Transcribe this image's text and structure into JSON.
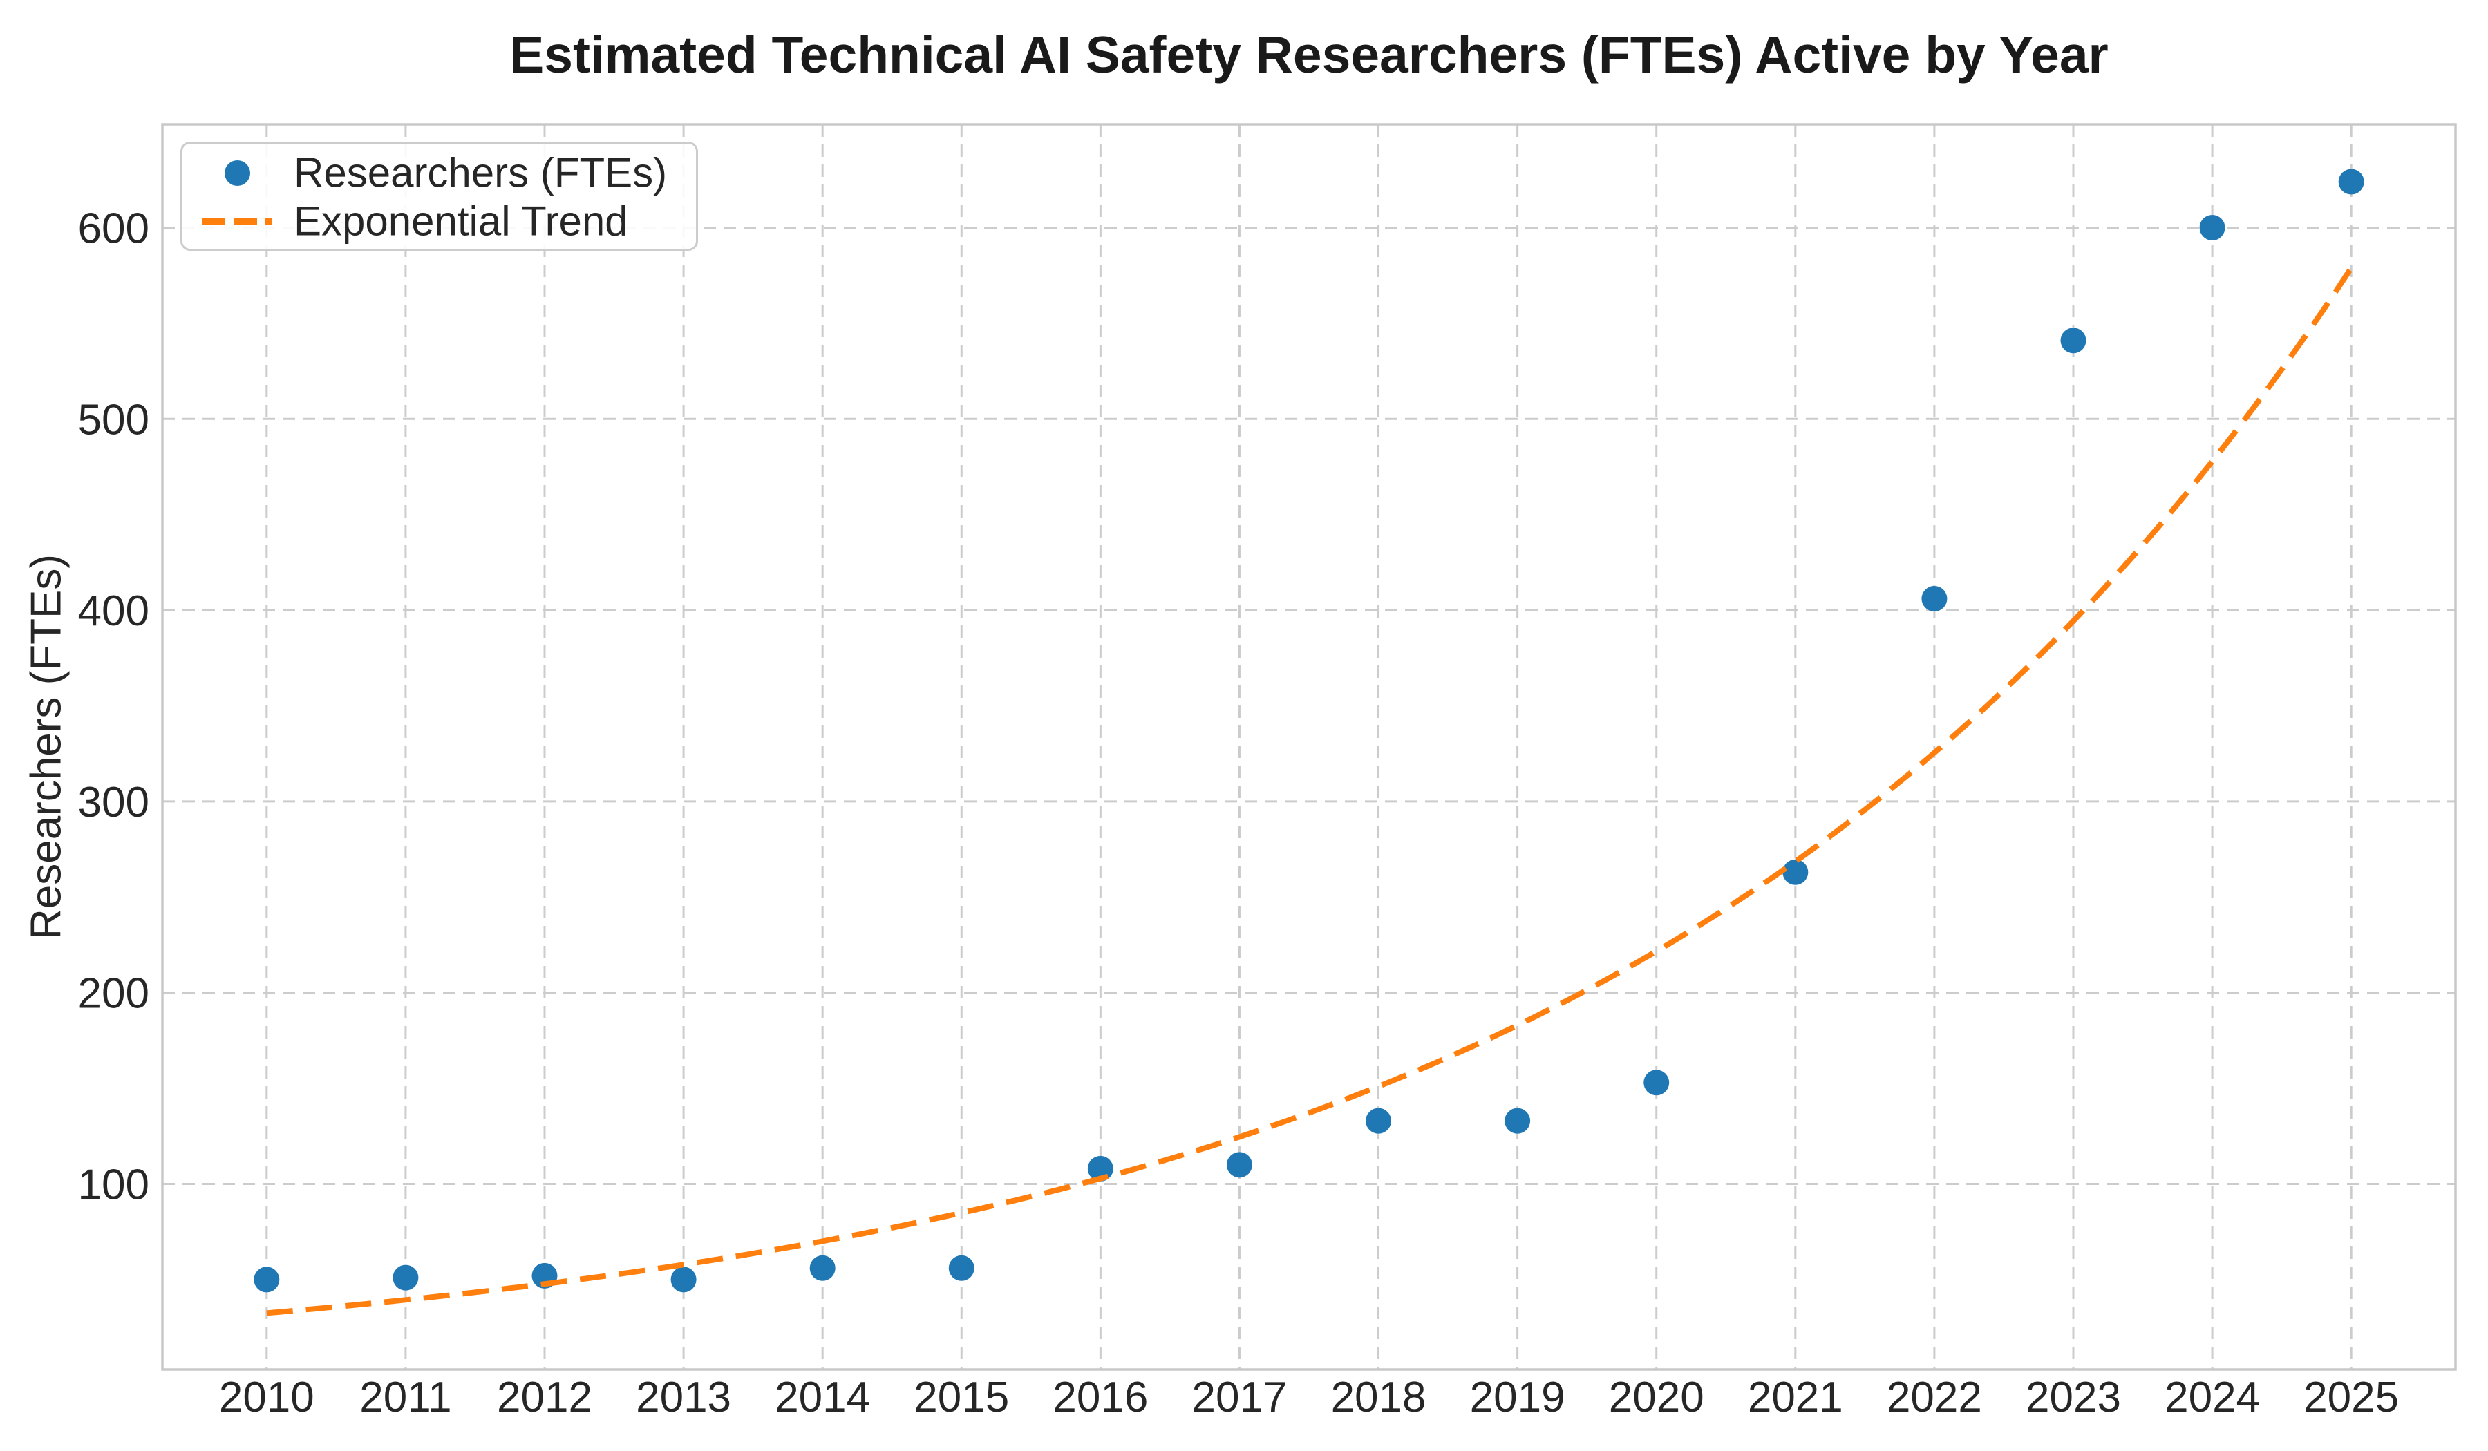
{
  "chart": {
    "title": "Estimated Technical AI Safety Researchers (FTEs) Active by Year",
    "ylabel": "Researchers (FTEs)",
    "legend": [
      {
        "label": "Researchers (FTEs)",
        "marker": "dot",
        "color": "#1f77b4"
      },
      {
        "label": "Exponential Trend",
        "marker": "dashed-line",
        "color": "#ff7f0e"
      }
    ]
  },
  "chart_data": {
    "type": "scatter",
    "title": "Estimated Technical AI Safety Researchers (FTEs) Active by Year",
    "xlabel": "",
    "ylabel": "Researchers (FTEs)",
    "x": [
      2010,
      2011,
      2012,
      2013,
      2014,
      2015,
      2016,
      2017,
      2018,
      2019,
      2020,
      2021,
      2022,
      2023,
      2024,
      2025
    ],
    "series": [
      {
        "name": "Researchers (FTEs)",
        "type": "scatter",
        "color": "#1f77b4",
        "marker_radius": 18.5,
        "values": [
          50,
          51,
          52,
          50,
          56,
          56,
          108,
          110,
          133,
          133,
          153,
          263,
          406,
          541,
          600,
          624
        ]
      },
      {
        "name": "Exponential Trend",
        "type": "dashed-line",
        "color": "#ff7f0e",
        "fit": {
          "model": "exponential",
          "a": 32.5,
          "b": 0.192,
          "x0": 2010,
          "x_start": 2010,
          "x_end": 2025
        },
        "values": [
          32.5,
          39.4,
          47.7,
          57.8,
          70.1,
          84.9,
          102.9,
          124.7,
          151.0,
          183.0,
          221.8,
          268.7,
          325.6,
          394.5,
          478.0,
          579.2
        ]
      }
    ],
    "x_ticks": [
      2010,
      2011,
      2012,
      2013,
      2014,
      2015,
      2016,
      2017,
      2018,
      2019,
      2020,
      2021,
      2022,
      2023,
      2024,
      2025
    ],
    "y_ticks": [
      100,
      200,
      300,
      400,
      500,
      600
    ],
    "xlim": [
      2009.25,
      2025.75
    ],
    "ylim": [
      3,
      654
    ],
    "grid": true,
    "grid_style": "dashed",
    "legend_position": "upper left"
  },
  "colors": {
    "scatter": "#1f77b4",
    "trend": "#ff7f0e",
    "grid": "#cccccc",
    "spine": "#c8c8c8",
    "text": "#262626",
    "title": "#1a1a1a",
    "background": "#ffffff"
  }
}
